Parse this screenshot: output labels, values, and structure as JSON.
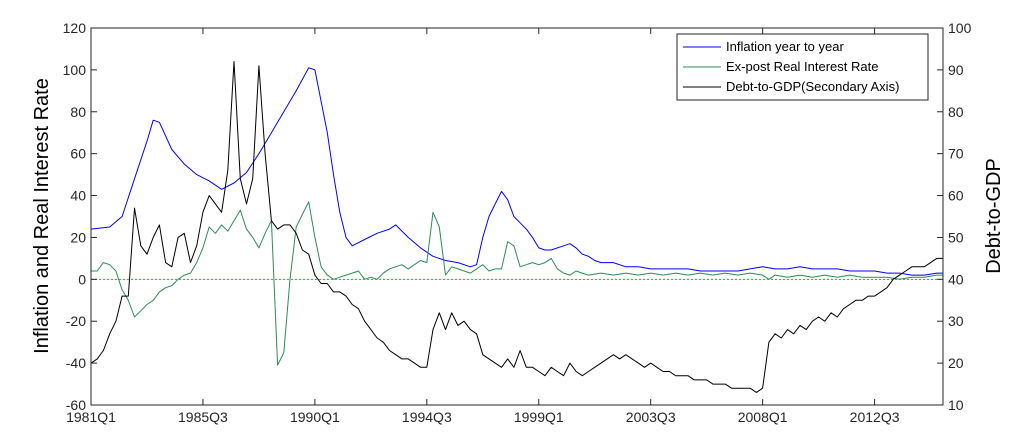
{
  "chart_data": {
    "type": "line",
    "title": "",
    "xlabel": "",
    "ylabel": "Inflation and Real Interest Rate",
    "y2label": "Debt-to-GDP",
    "x_tick_labels": [
      "1981Q1",
      "1985Q3",
      "1990Q1",
      "1994Q3",
      "1999Q1",
      "2003Q3",
      "2008Q1",
      "2012Q3"
    ],
    "x_tick_index": [
      0,
      18,
      36,
      54,
      72,
      90,
      108,
      126
    ],
    "ylim": [
      -60,
      120
    ],
    "yticks": [
      -60,
      -40,
      -20,
      0,
      20,
      40,
      60,
      80,
      100,
      120
    ],
    "y2lim": [
      10,
      100
    ],
    "y2ticks": [
      10,
      20,
      30,
      40,
      50,
      60,
      70,
      80,
      90,
      100
    ],
    "legend_position": "top-right",
    "grid": false,
    "zero_line": {
      "value": 0,
      "color": "#00cc00"
    },
    "series": [
      {
        "name": "Inflation year to year",
        "color": "#0000ff",
        "axis": "left",
        "points": [
          [
            0,
            24
          ],
          [
            3,
            25
          ],
          [
            5,
            30
          ],
          [
            7,
            48
          ],
          [
            9,
            66
          ],
          [
            10,
            76
          ],
          [
            11,
            75
          ],
          [
            13,
            62
          ],
          [
            15,
            55
          ],
          [
            17,
            50
          ],
          [
            19,
            47
          ],
          [
            21,
            43
          ],
          [
            23,
            46
          ],
          [
            25,
            51
          ],
          [
            27,
            60
          ],
          [
            29,
            70
          ],
          [
            31,
            80
          ],
          [
            33,
            90
          ],
          [
            35,
            101
          ],
          [
            36,
            100
          ],
          [
            37,
            85
          ],
          [
            38,
            70
          ],
          [
            39,
            50
          ],
          [
            40,
            32
          ],
          [
            41,
            20
          ],
          [
            42,
            16
          ],
          [
            44,
            19
          ],
          [
            46,
            22
          ],
          [
            48,
            24
          ],
          [
            49,
            26
          ],
          [
            51,
            20
          ],
          [
            53,
            15
          ],
          [
            55,
            11
          ],
          [
            57,
            9
          ],
          [
            59,
            8
          ],
          [
            61,
            6
          ],
          [
            62,
            7
          ],
          [
            63,
            20
          ],
          [
            64,
            30
          ],
          [
            65,
            36
          ],
          [
            66,
            42
          ],
          [
            67,
            38
          ],
          [
            68,
            30
          ],
          [
            69,
            27
          ],
          [
            70,
            24
          ],
          [
            71,
            20
          ],
          [
            72,
            15
          ],
          [
            73,
            14
          ],
          [
            74,
            14
          ],
          [
            75,
            15
          ],
          [
            76,
            16
          ],
          [
            77,
            17
          ],
          [
            78,
            15
          ],
          [
            79,
            12
          ],
          [
            80,
            11
          ],
          [
            81,
            9
          ],
          [
            82,
            8
          ],
          [
            84,
            8
          ],
          [
            86,
            6
          ],
          [
            88,
            6
          ],
          [
            90,
            5
          ],
          [
            92,
            5
          ],
          [
            94,
            5
          ],
          [
            96,
            5
          ],
          [
            98,
            4
          ],
          [
            100,
            4
          ],
          [
            102,
            4
          ],
          [
            104,
            4
          ],
          [
            106,
            5
          ],
          [
            108,
            6
          ],
          [
            110,
            5
          ],
          [
            112,
            5
          ],
          [
            114,
            6
          ],
          [
            116,
            5
          ],
          [
            118,
            5
          ],
          [
            120,
            5
          ],
          [
            122,
            4
          ],
          [
            124,
            4
          ],
          [
            126,
            4
          ],
          [
            128,
            3
          ],
          [
            130,
            3
          ],
          [
            132,
            2
          ],
          [
            134,
            2
          ],
          [
            136,
            3
          ],
          [
            137,
            3
          ]
        ]
      },
      {
        "name": "Ex-post Real Interest Rate",
        "color": "#2e8b57",
        "axis": "left",
        "points": [
          [
            0,
            4
          ],
          [
            1,
            4
          ],
          [
            2,
            8
          ],
          [
            3,
            7
          ],
          [
            4,
            4
          ],
          [
            5,
            -5
          ],
          [
            6,
            -10
          ],
          [
            7,
            -18
          ],
          [
            8,
            -15
          ],
          [
            9,
            -12
          ],
          [
            10,
            -10
          ],
          [
            11,
            -6
          ],
          [
            12,
            -4
          ],
          [
            13,
            -3
          ],
          [
            14,
            0
          ],
          [
            15,
            2
          ],
          [
            16,
            3
          ],
          [
            17,
            8
          ],
          [
            18,
            15
          ],
          [
            19,
            25
          ],
          [
            20,
            22
          ],
          [
            21,
            26
          ],
          [
            22,
            23
          ],
          [
            23,
            28
          ],
          [
            24,
            33
          ],
          [
            25,
            24
          ],
          [
            26,
            20
          ],
          [
            27,
            15
          ],
          [
            28,
            22
          ],
          [
            29,
            28
          ],
          [
            30,
            -41
          ],
          [
            31,
            -35
          ],
          [
            32,
            0
          ],
          [
            33,
            25
          ],
          [
            34,
            31
          ],
          [
            35,
            37
          ],
          [
            36,
            20
          ],
          [
            37,
            6
          ],
          [
            38,
            2
          ],
          [
            39,
            0
          ],
          [
            40,
            1
          ],
          [
            41,
            2
          ],
          [
            42,
            3
          ],
          [
            43,
            4
          ],
          [
            44,
            0
          ],
          [
            45,
            1
          ],
          [
            46,
            0
          ],
          [
            47,
            3
          ],
          [
            48,
            5
          ],
          [
            49,
            6
          ],
          [
            50,
            7
          ],
          [
            51,
            5
          ],
          [
            52,
            7
          ],
          [
            53,
            9
          ],
          [
            54,
            8
          ],
          [
            55,
            32
          ],
          [
            56,
            25
          ],
          [
            57,
            2
          ],
          [
            58,
            6
          ],
          [
            59,
            5
          ],
          [
            60,
            4
          ],
          [
            61,
            3
          ],
          [
            62,
            5
          ],
          [
            63,
            7
          ],
          [
            64,
            4
          ],
          [
            65,
            5
          ],
          [
            66,
            5
          ],
          [
            67,
            18
          ],
          [
            68,
            16
          ],
          [
            69,
            6
          ],
          [
            70,
            7
          ],
          [
            71,
            8
          ],
          [
            72,
            7
          ],
          [
            73,
            8
          ],
          [
            74,
            10
          ],
          [
            75,
            5
          ],
          [
            76,
            3
          ],
          [
            77,
            2
          ],
          [
            78,
            4
          ],
          [
            79,
            3
          ],
          [
            80,
            2
          ],
          [
            82,
            3
          ],
          [
            84,
            2
          ],
          [
            86,
            3
          ],
          [
            88,
            2
          ],
          [
            90,
            3
          ],
          [
            92,
            2
          ],
          [
            94,
            3
          ],
          [
            96,
            2
          ],
          [
            98,
            3
          ],
          [
            100,
            2
          ],
          [
            102,
            3
          ],
          [
            104,
            2
          ],
          [
            106,
            3
          ],
          [
            108,
            2
          ],
          [
            109,
            0
          ],
          [
            110,
            2
          ],
          [
            112,
            1
          ],
          [
            114,
            2
          ],
          [
            116,
            1
          ],
          [
            118,
            2
          ],
          [
            120,
            1
          ],
          [
            122,
            2
          ],
          [
            124,
            1
          ],
          [
            126,
            1
          ],
          [
            128,
            1
          ],
          [
            130,
            0
          ],
          [
            132,
            1
          ],
          [
            134,
            1
          ],
          [
            136,
            2
          ],
          [
            137,
            2
          ]
        ]
      },
      {
        "name": "Debt-to-GDP(Secondary Axis)",
        "color": "#000000",
        "axis": "right",
        "points": [
          [
            0,
            20
          ],
          [
            1,
            21
          ],
          [
            2,
            23
          ],
          [
            3,
            27
          ],
          [
            4,
            30
          ],
          [
            5,
            36
          ],
          [
            6,
            36
          ],
          [
            7,
            57
          ],
          [
            8,
            48
          ],
          [
            9,
            46
          ],
          [
            10,
            50
          ],
          [
            11,
            53
          ],
          [
            12,
            44
          ],
          [
            13,
            43
          ],
          [
            14,
            50
          ],
          [
            15,
            51
          ],
          [
            16,
            44
          ],
          [
            17,
            48
          ],
          [
            18,
            56
          ],
          [
            19,
            60
          ],
          [
            20,
            58
          ],
          [
            21,
            56
          ],
          [
            22,
            66
          ],
          [
            23,
            92
          ],
          [
            24,
            64
          ],
          [
            25,
            58
          ],
          [
            26,
            64
          ],
          [
            27,
            91
          ],
          [
            28,
            70
          ],
          [
            29,
            54
          ],
          [
            30,
            52
          ],
          [
            31,
            53
          ],
          [
            32,
            53
          ],
          [
            33,
            51
          ],
          [
            34,
            47
          ],
          [
            35,
            46
          ],
          [
            36,
            41
          ],
          [
            37,
            39
          ],
          [
            38,
            39
          ],
          [
            39,
            37
          ],
          [
            40,
            37
          ],
          [
            41,
            36
          ],
          [
            42,
            34
          ],
          [
            43,
            33
          ],
          [
            44,
            30
          ],
          [
            45,
            28
          ],
          [
            46,
            26
          ],
          [
            47,
            25
          ],
          [
            48,
            23
          ],
          [
            49,
            22
          ],
          [
            50,
            21
          ],
          [
            51,
            21
          ],
          [
            52,
            20
          ],
          [
            53,
            19
          ],
          [
            54,
            19
          ],
          [
            55,
            28
          ],
          [
            56,
            32
          ],
          [
            57,
            28
          ],
          [
            58,
            32
          ],
          [
            59,
            29
          ],
          [
            60,
            30
          ],
          [
            61,
            28
          ],
          [
            62,
            27
          ],
          [
            63,
            22
          ],
          [
            64,
            21
          ],
          [
            65,
            20
          ],
          [
            66,
            19
          ],
          [
            67,
            21
          ],
          [
            68,
            19
          ],
          [
            69,
            23
          ],
          [
            70,
            19
          ],
          [
            71,
            19
          ],
          [
            72,
            18
          ],
          [
            73,
            17
          ],
          [
            74,
            19
          ],
          [
            75,
            18
          ],
          [
            76,
            17
          ],
          [
            77,
            20
          ],
          [
            78,
            18
          ],
          [
            79,
            17
          ],
          [
            80,
            18
          ],
          [
            81,
            19
          ],
          [
            82,
            20
          ],
          [
            83,
            21
          ],
          [
            84,
            22
          ],
          [
            85,
            21
          ],
          [
            86,
            22
          ],
          [
            87,
            21
          ],
          [
            88,
            20
          ],
          [
            89,
            19
          ],
          [
            90,
            20
          ],
          [
            91,
            19
          ],
          [
            92,
            18
          ],
          [
            93,
            18
          ],
          [
            94,
            17
          ],
          [
            95,
            17
          ],
          [
            96,
            17
          ],
          [
            97,
            16
          ],
          [
            98,
            16
          ],
          [
            99,
            16
          ],
          [
            100,
            15
          ],
          [
            101,
            15
          ],
          [
            102,
            15
          ],
          [
            103,
            14
          ],
          [
            104,
            14
          ],
          [
            105,
            14
          ],
          [
            106,
            14
          ],
          [
            107,
            13
          ],
          [
            108,
            14
          ],
          [
            109,
            25
          ],
          [
            110,
            27
          ],
          [
            111,
            26
          ],
          [
            112,
            28
          ],
          [
            113,
            27
          ],
          [
            114,
            29
          ],
          [
            115,
            28
          ],
          [
            116,
            30
          ],
          [
            117,
            31
          ],
          [
            118,
            30
          ],
          [
            119,
            32
          ],
          [
            120,
            31
          ],
          [
            121,
            33
          ],
          [
            122,
            34
          ],
          [
            123,
            35
          ],
          [
            124,
            35
          ],
          [
            125,
            36
          ],
          [
            126,
            36
          ],
          [
            127,
            37
          ],
          [
            128,
            38
          ],
          [
            129,
            40
          ],
          [
            130,
            41
          ],
          [
            131,
            42
          ],
          [
            132,
            43
          ],
          [
            133,
            43
          ],
          [
            134,
            43
          ],
          [
            135,
            44
          ],
          [
            136,
            45
          ],
          [
            137,
            45
          ]
        ]
      }
    ]
  }
}
